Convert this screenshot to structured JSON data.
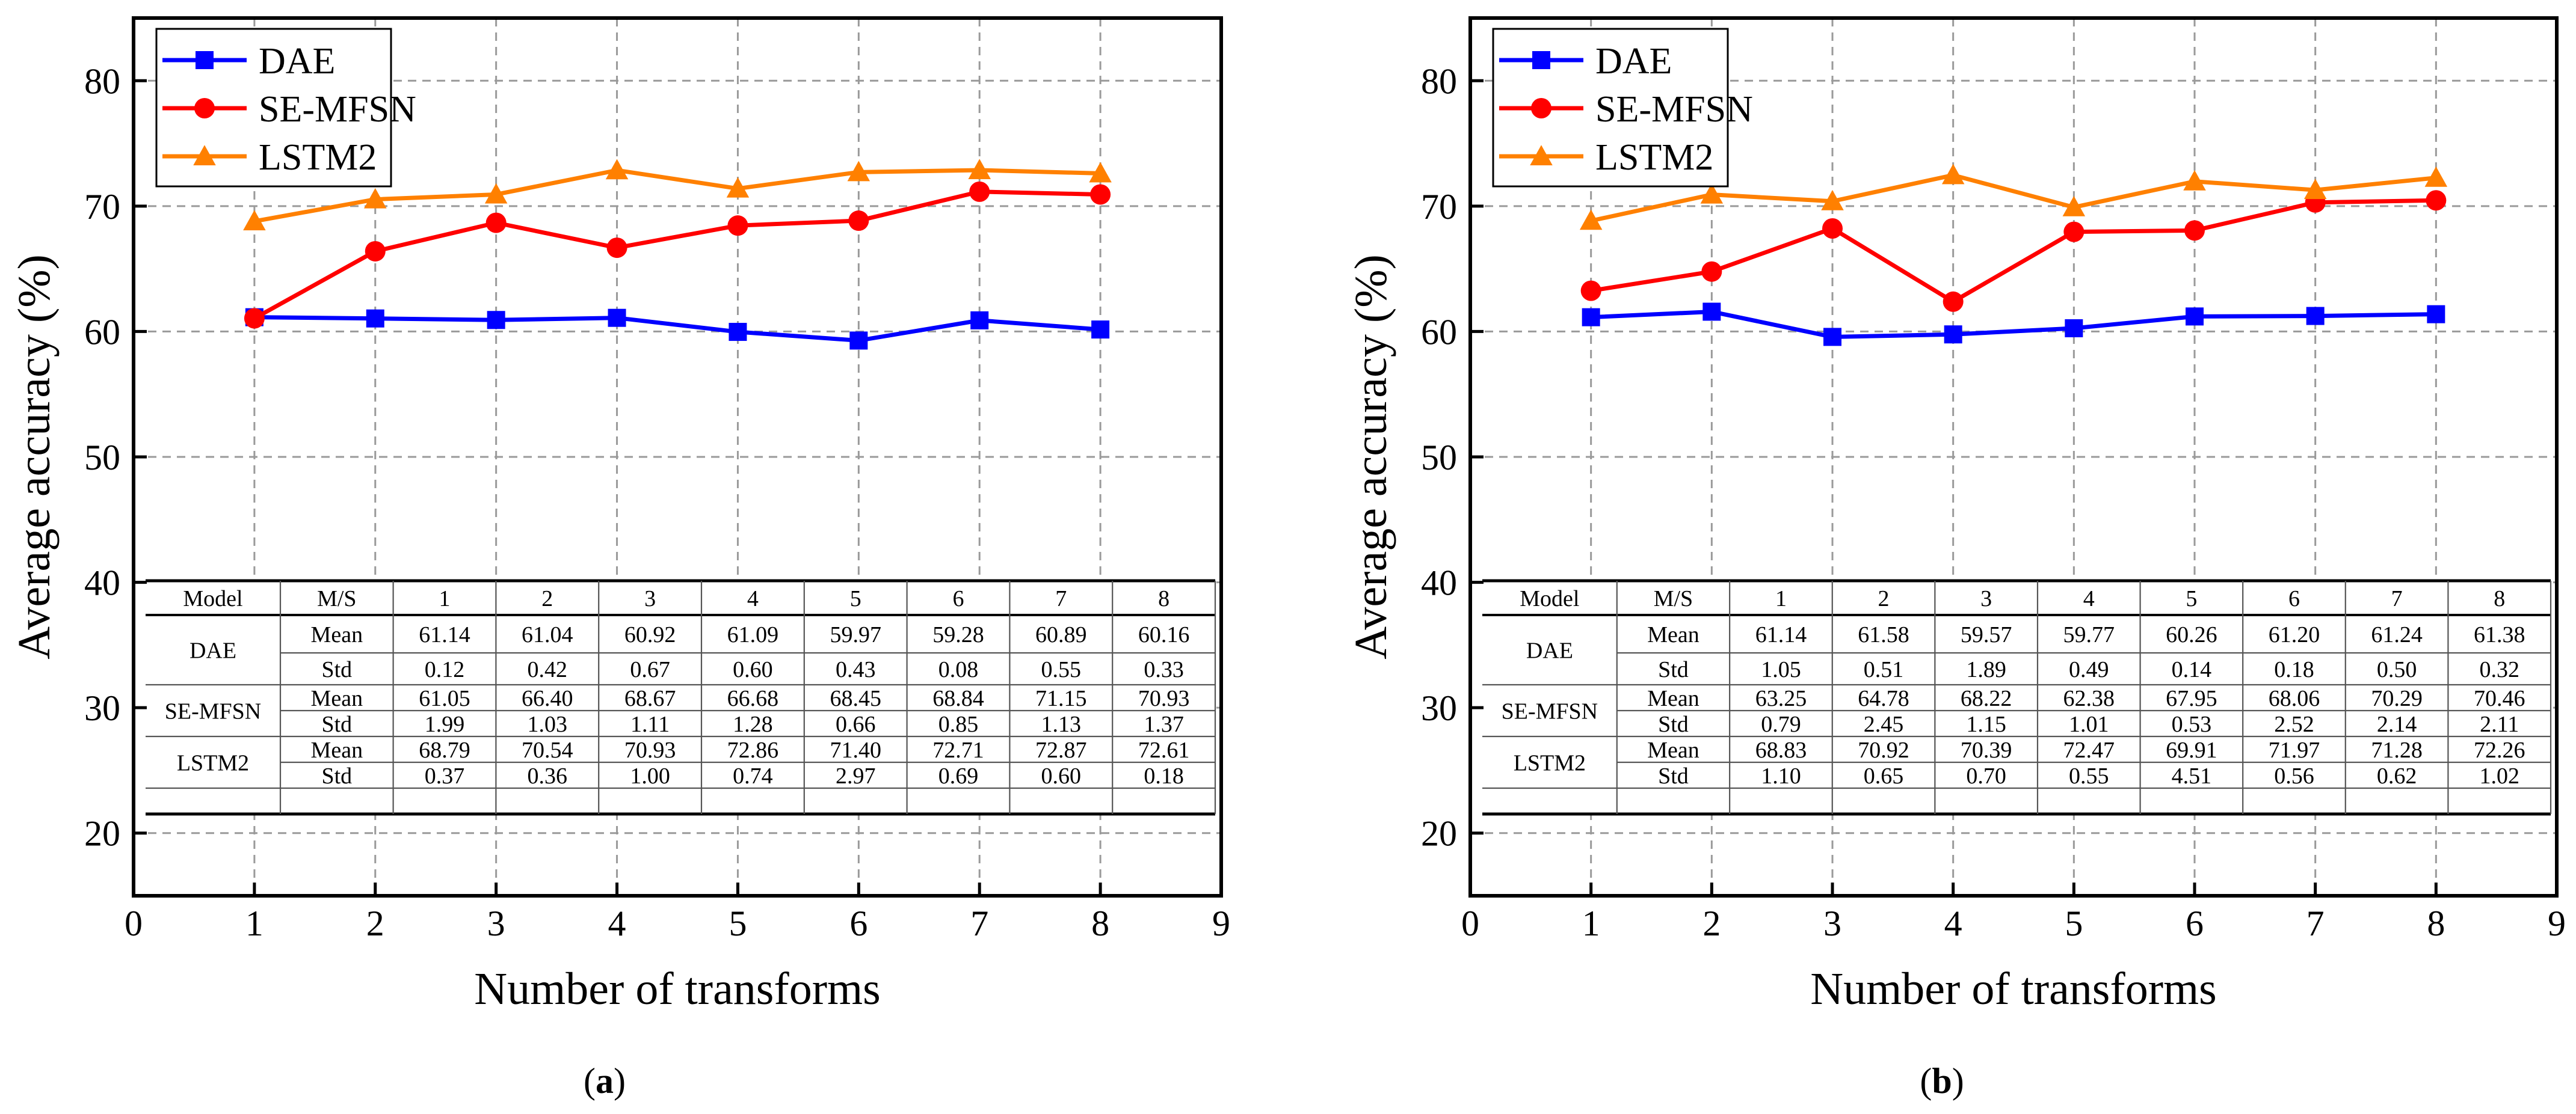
{
  "chart_data": [
    {
      "type": "line",
      "panel_label": "a",
      "xlabel": "Number of transforms",
      "ylabel": "Average accuracy (%)",
      "xlim": [
        0,
        9
      ],
      "ylim": [
        15,
        85
      ],
      "xticks": [
        "0",
        "1",
        "2",
        "3",
        "4",
        "5",
        "6",
        "7",
        "8",
        "9"
      ],
      "yticks": [
        "20",
        "30",
        "40",
        "50",
        "60",
        "70",
        "80"
      ],
      "grid": true,
      "legend_position": "top-left",
      "x": [
        1,
        2,
        3,
        4,
        5,
        6,
        7,
        8
      ],
      "series": [
        {
          "name": "DAE",
          "color": "#0000ff",
          "marker": "square",
          "values": [
            61.14,
            61.04,
            60.92,
            61.09,
            59.97,
            59.28,
            60.89,
            60.16
          ],
          "std": [
            0.12,
            0.42,
            0.67,
            0.6,
            0.43,
            0.08,
            0.55,
            0.33
          ]
        },
        {
          "name": "SE-MFSN",
          "color": "#ff0000",
          "marker": "circle",
          "values": [
            61.05,
            66.4,
            68.67,
            66.68,
            68.45,
            68.84,
            71.15,
            70.93
          ],
          "std": [
            1.99,
            1.03,
            1.11,
            1.28,
            0.66,
            0.85,
            1.13,
            1.37
          ]
        },
        {
          "name": "LSTM2",
          "color": "#ff8000",
          "marker": "triangle",
          "values": [
            68.79,
            70.54,
            70.93,
            72.86,
            71.4,
            72.71,
            72.87,
            72.61
          ],
          "std": [
            0.37,
            0.36,
            1.0,
            0.74,
            2.97,
            0.69,
            0.6,
            0.18
          ]
        }
      ],
      "table": {
        "header": [
          "Model",
          "M/S",
          "1",
          "2",
          "3",
          "4",
          "5",
          "6",
          "7",
          "8"
        ],
        "rows": [
          {
            "model": "DAE",
            "mean_label": "Mean",
            "std_label": "Std",
            "mean": [
              "61.14",
              "61.04",
              "60.92",
              "61.09",
              "59.97",
              "59.28",
              "60.89",
              "60.16"
            ],
            "std": [
              "0.12",
              "0.42",
              "0.67",
              "0.60",
              "0.43",
              "0.08",
              "0.55",
              "0.33"
            ]
          },
          {
            "model": "SE-MFSN",
            "mean_label": "Mean",
            "std_label": "Std",
            "mean": [
              "61.05",
              "66.40",
              "68.67",
              "66.68",
              "68.45",
              "68.84",
              "71.15",
              "70.93"
            ],
            "std": [
              "1.99",
              "1.03",
              "1.11",
              "1.28",
              "0.66",
              "0.85",
              "1.13",
              "1.37"
            ]
          },
          {
            "model": "LSTM2",
            "mean_label": "Mean",
            "std_label": "Std",
            "mean": [
              "68.79",
              "70.54",
              "70.93",
              "72.86",
              "71.40",
              "72.71",
              "72.87",
              "72.61"
            ],
            "std": [
              "0.37",
              "0.36",
              "1.00",
              "0.74",
              "2.97",
              "0.69",
              "0.60",
              "0.18"
            ]
          }
        ]
      }
    },
    {
      "type": "line",
      "panel_label": "b",
      "xlabel": "Number of transforms",
      "ylabel": "Average accuracy (%)",
      "xlim": [
        0,
        9
      ],
      "ylim": [
        15,
        85
      ],
      "xticks": [
        "0",
        "1",
        "2",
        "3",
        "4",
        "5",
        "6",
        "7",
        "8",
        "9"
      ],
      "yticks": [
        "20",
        "30",
        "40",
        "50",
        "60",
        "70",
        "80"
      ],
      "grid": true,
      "legend_position": "top-left",
      "x": [
        1,
        2,
        3,
        4,
        5,
        6,
        7,
        8
      ],
      "series": [
        {
          "name": "DAE",
          "color": "#0000ff",
          "marker": "square",
          "values": [
            61.14,
            61.58,
            59.57,
            59.77,
            60.26,
            61.2,
            61.24,
            61.38
          ],
          "std": [
            1.05,
            0.51,
            1.89,
            0.49,
            0.14,
            0.18,
            0.5,
            0.32
          ]
        },
        {
          "name": "SE-MFSN",
          "color": "#ff0000",
          "marker": "circle",
          "values": [
            63.25,
            64.78,
            68.22,
            62.38,
            67.95,
            68.06,
            70.29,
            70.46
          ],
          "std": [
            0.79,
            2.45,
            1.15,
            1.01,
            0.53,
            2.52,
            2.14,
            2.11
          ]
        },
        {
          "name": "LSTM2",
          "color": "#ff8000",
          "marker": "triangle",
          "values": [
            68.83,
            70.92,
            70.39,
            72.47,
            69.91,
            71.97,
            71.28,
            72.26
          ],
          "std": [
            1.1,
            0.65,
            0.7,
            0.55,
            4.51,
            0.56,
            0.62,
            1.02
          ]
        }
      ],
      "table": {
        "header": [
          "Model",
          "M/S",
          "1",
          "2",
          "3",
          "4",
          "5",
          "6",
          "7",
          "8"
        ],
        "rows": [
          {
            "model": "DAE",
            "mean_label": "Mean",
            "std_label": "Std",
            "mean": [
              "61.14",
              "61.58",
              "59.57",
              "59.77",
              "60.26",
              "61.20",
              "61.24",
              "61.38"
            ],
            "std": [
              "1.05",
              "0.51",
              "1.89",
              "0.49",
              "0.14",
              "0.18",
              "0.50",
              "0.32"
            ]
          },
          {
            "model": "SE-MFSN",
            "mean_label": "Mean",
            "std_label": "Std",
            "mean": [
              "63.25",
              "64.78",
              "68.22",
              "62.38",
              "67.95",
              "68.06",
              "70.29",
              "70.46"
            ],
            "std": [
              "0.79",
              "2.45",
              "1.15",
              "1.01",
              "0.53",
              "2.52",
              "2.14",
              "2.11"
            ]
          },
          {
            "model": "LSTM2",
            "mean_label": "Mean",
            "std_label": "Std",
            "mean": [
              "68.83",
              "70.92",
              "70.39",
              "72.47",
              "69.91",
              "71.97",
              "71.28",
              "72.26"
            ],
            "std": [
              "1.10",
              "0.65",
              "0.70",
              "0.55",
              "4.51",
              "0.56",
              "0.62",
              "1.02"
            ]
          }
        ]
      }
    }
  ]
}
